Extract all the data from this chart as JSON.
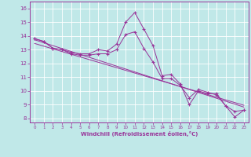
{
  "xlabel": "Windchill (Refroidissement éolien,°C)",
  "bg_color": "#c0e8e8",
  "line_color": "#993399",
  "xlim": [
    -0.5,
    23.5
  ],
  "ylim": [
    7.7,
    16.5
  ],
  "yticks": [
    8,
    9,
    10,
    11,
    12,
    13,
    14,
    15,
    16
  ],
  "xticks": [
    0,
    1,
    2,
    3,
    4,
    5,
    6,
    7,
    8,
    9,
    10,
    11,
    12,
    13,
    14,
    15,
    16,
    17,
    18,
    19,
    20,
    21,
    22,
    23
  ],
  "line1_x": [
    0,
    1,
    2,
    3,
    4,
    5,
    6,
    7,
    8,
    9,
    10,
    11,
    12,
    13,
    14,
    15,
    16,
    17,
    18,
    19,
    20,
    21,
    22,
    23
  ],
  "line1_y": [
    13.8,
    13.6,
    13.1,
    13.0,
    12.8,
    12.7,
    12.7,
    13.0,
    12.9,
    13.4,
    15.0,
    15.7,
    14.5,
    13.3,
    11.1,
    11.2,
    10.5,
    9.0,
    10.0,
    9.8,
    9.8,
    8.9,
    8.1,
    8.6
  ],
  "line2_x": [
    0,
    1,
    2,
    3,
    4,
    5,
    6,
    7,
    8,
    9,
    10,
    11,
    12,
    13,
    14,
    15,
    16,
    17,
    18,
    19,
    20,
    21,
    22,
    23
  ],
  "line2_y": [
    13.8,
    13.6,
    13.1,
    13.0,
    12.7,
    12.6,
    12.6,
    12.7,
    12.7,
    13.0,
    14.1,
    14.3,
    13.1,
    12.1,
    10.9,
    10.9,
    10.4,
    9.5,
    10.1,
    9.9,
    9.7,
    8.9,
    8.5,
    8.6
  ],
  "trend1_x": [
    0,
    23
  ],
  "trend1_y": [
    13.72,
    8.82
  ],
  "trend2_x": [
    0,
    23
  ],
  "trend2_y": [
    13.45,
    8.95
  ]
}
